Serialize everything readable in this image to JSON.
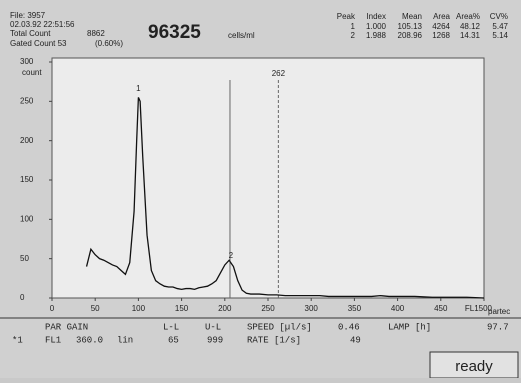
{
  "header": {
    "file": "File: 3957",
    "datetime": "02.03.92 22:51:56",
    "total_count_label": "Total Count",
    "total_count": "8862",
    "gated_count": "Gated Count 53",
    "gated_percent": "(0.60%)",
    "concentration": "96325",
    "concentration_unit": "cells/ml"
  },
  "peak_table": {
    "columns": [
      "Peak",
      "Index",
      "Mean",
      "Area",
      "Area%",
      "CV%"
    ],
    "rows": [
      [
        "1",
        "1.000",
        "105.13",
        "4264",
        "48.12",
        "5.47"
      ],
      [
        "2",
        "1.988",
        "208.96",
        "1268",
        "14.31",
        "5.14"
      ]
    ]
  },
  "chart_data": {
    "type": "line",
    "ylabel": "count",
    "brand": "partec",
    "color": "#111111",
    "x": [
      40,
      45,
      50,
      55,
      60,
      65,
      70,
      75,
      80,
      85,
      90,
      95,
      98,
      100,
      102,
      105,
      110,
      115,
      120,
      125,
      130,
      135,
      140,
      145,
      150,
      155,
      160,
      165,
      170,
      175,
      180,
      185,
      190,
      195,
      200,
      205,
      210,
      215,
      220,
      225,
      230,
      240,
      250,
      260,
      270,
      280,
      290,
      300,
      310,
      320,
      330,
      340,
      350,
      360,
      370,
      380,
      390,
      400,
      420,
      440,
      460,
      480,
      500
    ],
    "values": [
      40,
      62,
      55,
      50,
      48,
      45,
      42,
      40,
      35,
      30,
      45,
      110,
      200,
      255,
      250,
      180,
      80,
      35,
      22,
      18,
      15,
      14,
      14,
      12,
      11,
      12,
      12,
      11,
      13,
      14,
      15,
      18,
      22,
      32,
      42,
      48,
      40,
      22,
      10,
      6,
      5,
      5,
      4,
      4,
      3,
      3,
      3,
      3,
      3,
      2,
      2,
      2,
      2,
      2,
      2,
      3,
      2,
      2,
      2,
      1,
      1,
      1,
      0
    ],
    "xlim": [
      0,
      500
    ],
    "ylim": [
      0,
      300
    ],
    "xticks": [
      0,
      50,
      100,
      150,
      200,
      250,
      300,
      350,
      400,
      450,
      {
        "value": 500,
        "label": "FL1500"
      }
    ],
    "yticks": [
      0,
      50,
      100,
      150,
      200,
      250,
      300
    ],
    "gates": [
      {
        "value": 206,
        "style": "solid"
      },
      {
        "value": 262,
        "style": "dashed",
        "label": "262"
      }
    ],
    "peak_labels": [
      {
        "x": 100,
        "y": 258,
        "label": "1"
      },
      {
        "x": 207,
        "y": 46,
        "label": "2"
      }
    ]
  },
  "footer": {
    "row1": [
      [
        "PAR GAIN",
        45
      ],
      [
        "L-L",
        163
      ],
      [
        "U-L",
        205
      ],
      [
        "SPEED [µl/s]",
        247
      ],
      [
        "0.46",
        338
      ],
      [
        "LAMP [h]",
        388
      ],
      [
        "97.7",
        487
      ]
    ],
    "row2": [
      [
        "*1",
        12
      ],
      [
        "FL1",
        45
      ],
      [
        "360.0",
        76
      ],
      [
        "lin",
        117
      ],
      [
        "65",
        168
      ],
      [
        "999",
        207
      ],
      [
        "RATE [1/s]",
        247
      ],
      [
        "49",
        350
      ]
    ],
    "button": "ready"
  }
}
